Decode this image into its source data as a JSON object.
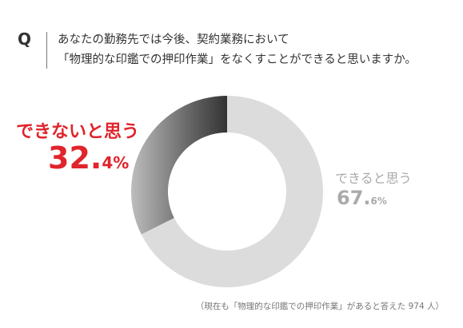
{
  "question": {
    "marker": "Q",
    "line1": "あなたの勤務先では今後、契約業務において",
    "line2": "「物理的な印鑑での押印作業」をなくすことができると思いますか。"
  },
  "chart_data": {
    "type": "pie",
    "donut": true,
    "slices": [
      {
        "label": "できないと思う",
        "value": 32.4,
        "pct_int": "32.",
        "pct_dec": "4%",
        "color": "#4a4a4a"
      },
      {
        "label": "できると思う",
        "value": 67.6,
        "pct_int": "67.",
        "pct_dec": "6%",
        "color": "#dcdcdc"
      }
    ],
    "footnote": "（現在も「物理的な印鑑での押印作業」があると答えた 974 人）"
  }
}
